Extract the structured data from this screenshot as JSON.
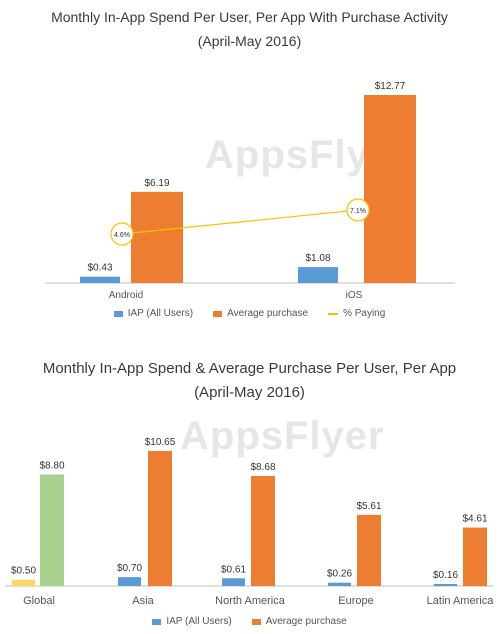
{
  "colors": {
    "iap": "#5b9bd5",
    "avg": "#ed7d31",
    "paying": "#ffc000",
    "global_avg": "#a9d18e",
    "global_iap": "#ffd966",
    "axis": "#bfbfbf"
  },
  "watermark": "AppsFlyer",
  "chart_data": [
    {
      "type": "bar",
      "title_line1": "Monthly In-App Spend Per User, Per App With Purchase Activity",
      "title_line2": "(April-May 2016)",
      "categories": [
        "Android",
        "iOS"
      ],
      "series": [
        {
          "name": "IAP (All Users)",
          "values": [
            0.43,
            1.08
          ],
          "labels": [
            "$0.43",
            "$1.08"
          ]
        },
        {
          "name": "Average purchase",
          "values": [
            6.19,
            12.77
          ],
          "labels": [
            "$6.19",
            "$12.77"
          ]
        },
        {
          "name": "% Paying",
          "type": "line",
          "values": [
            4.6,
            7.1
          ],
          "labels": [
            "4.6%",
            "7.1%"
          ]
        }
      ],
      "ylim": [
        0,
        13
      ]
    },
    {
      "type": "bar",
      "title_line1": "Monthly In-App Spend & Average Purchase Per User, Per App",
      "title_line2": "(April-May 2016)",
      "categories": [
        "Global",
        "Asia",
        "North America",
        "Europe",
        "Latin America"
      ],
      "series": [
        {
          "name": "IAP (All Users)",
          "values": [
            0.5,
            0.7,
            0.61,
            0.26,
            0.16
          ],
          "labels": [
            "$0.50",
            "$0.70",
            "$0.61",
            "$0.26",
            "$0.16"
          ]
        },
        {
          "name": "Average purchase",
          "values": [
            8.8,
            10.65,
            8.68,
            5.61,
            4.61
          ],
          "labels": [
            "$8.80",
            "$10.65",
            "$8.68",
            "$5.61",
            "$4.61"
          ]
        }
      ],
      "ylim": [
        0,
        11
      ]
    }
  ]
}
